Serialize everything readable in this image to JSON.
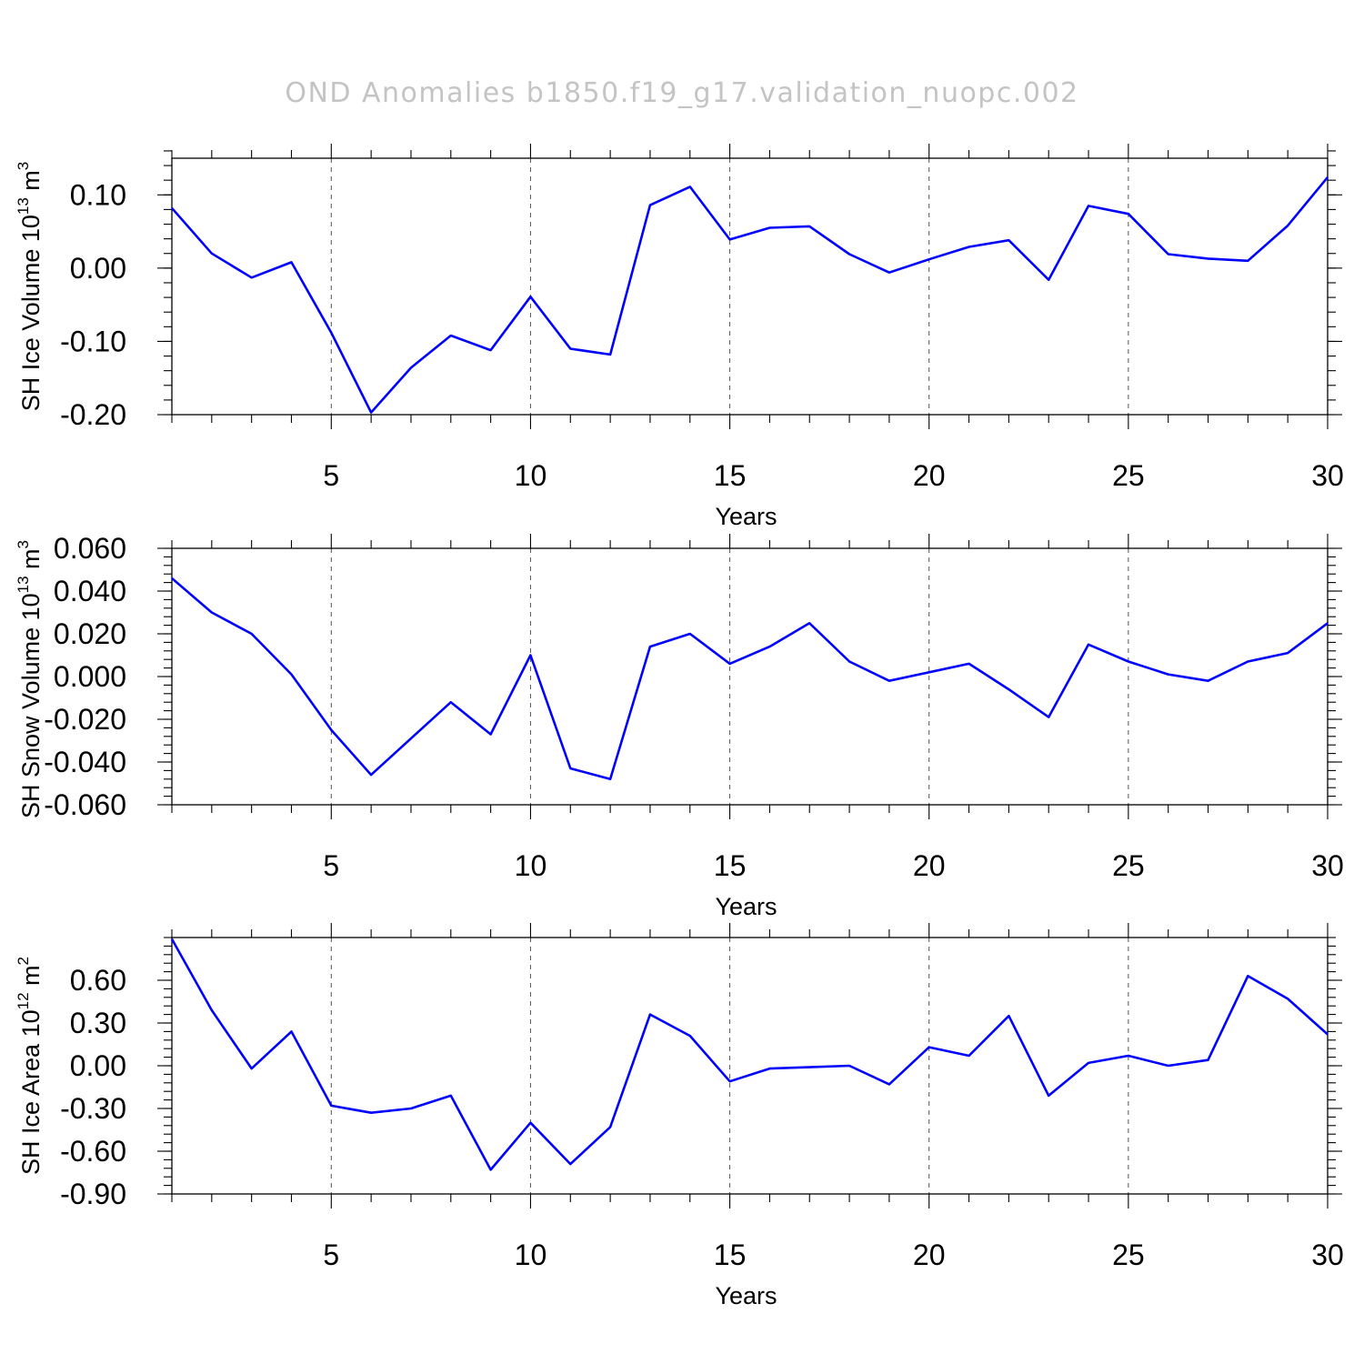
{
  "chart_data": {
    "title": "OND Anomalies b1850.f19_g17.validation_nuopc.002",
    "line_color": "#0000ff",
    "panels": [
      {
        "type": "line",
        "ylabel": {
          "main": "SH Ice Volume 10",
          "exponent": "13",
          "unit": " m",
          "unit_exponent": "3"
        },
        "xlabel": "Years",
        "xlim": [
          1,
          30
        ],
        "xticks": [
          5,
          10,
          15,
          20,
          25,
          30
        ],
        "ylim": [
          -0.2,
          0.15
        ],
        "yticks": [
          -0.2,
          -0.1,
          0.0,
          0.1
        ],
        "ytick_labels": [
          "-0.20",
          "-0.10",
          "0.00",
          "0.10"
        ],
        "yminor_step": 0.02,
        "x": [
          1,
          2,
          3,
          4,
          5,
          6,
          7,
          8,
          9,
          10,
          11,
          12,
          13,
          14,
          15,
          16,
          17,
          18,
          19,
          20,
          21,
          22,
          23,
          24,
          25,
          26,
          27,
          28,
          29,
          30
        ],
        "values": [
          0.082,
          0.02,
          -0.013,
          0.008,
          -0.088,
          -0.197,
          -0.136,
          -0.092,
          -0.112,
          -0.039,
          -0.11,
          -0.118,
          0.086,
          0.111,
          0.039,
          0.055,
          0.057,
          0.019,
          -0.006,
          0.012,
          0.029,
          0.038,
          -0.016,
          0.085,
          0.074,
          0.019,
          0.013,
          0.01,
          0.058,
          0.124
        ]
      },
      {
        "type": "line",
        "ylabel": {
          "main": "SH Snow Volume 10",
          "exponent": "13",
          "unit": " m",
          "unit_exponent": "3"
        },
        "xlabel": "Years",
        "xlim": [
          1,
          30
        ],
        "xticks": [
          5,
          10,
          15,
          20,
          25,
          30
        ],
        "ylim": [
          -0.06,
          0.06
        ],
        "yticks": [
          -0.06,
          -0.04,
          -0.02,
          0.0,
          0.02,
          0.04,
          0.06
        ],
        "ytick_labels": [
          "-0.060",
          "-0.040",
          "-0.020",
          "0.000",
          "0.020",
          "0.040",
          "0.060"
        ],
        "yminor_step": 0.004,
        "x": [
          1,
          2,
          3,
          4,
          5,
          6,
          7,
          8,
          9,
          10,
          11,
          12,
          13,
          14,
          15,
          16,
          17,
          18,
          19,
          20,
          21,
          22,
          23,
          24,
          25,
          26,
          27,
          28,
          29,
          30
        ],
        "values": [
          0.046,
          0.03,
          0.02,
          0.001,
          -0.025,
          -0.046,
          -0.029,
          -0.012,
          -0.027,
          0.01,
          -0.043,
          -0.048,
          0.014,
          0.02,
          0.006,
          0.014,
          0.025,
          0.007,
          -0.002,
          0.002,
          0.006,
          -0.006,
          -0.019,
          0.015,
          0.007,
          0.001,
          -0.002,
          0.007,
          0.011,
          0.025
        ]
      },
      {
        "type": "line",
        "ylabel": {
          "main": "SH Ice Area 10",
          "exponent": "12",
          "unit": " m",
          "unit_exponent": "2"
        },
        "xlabel": "Years",
        "xlim": [
          1,
          30
        ],
        "xticks": [
          5,
          10,
          15,
          20,
          25,
          30
        ],
        "ylim": [
          -0.9,
          0.9
        ],
        "yticks": [
          -0.9,
          -0.6,
          -0.3,
          0.0,
          0.3,
          0.6
        ],
        "ytick_labels": [
          "-0.90",
          "-0.60",
          "-0.30",
          "0.00",
          "0.30",
          "0.60"
        ],
        "yminor_step": 0.06,
        "x": [
          1,
          2,
          3,
          4,
          5,
          6,
          7,
          8,
          9,
          10,
          11,
          12,
          13,
          14,
          15,
          16,
          17,
          18,
          19,
          20,
          21,
          22,
          23,
          24,
          25,
          26,
          27,
          28,
          29,
          30
        ],
        "values": [
          0.89,
          0.39,
          -0.02,
          0.24,
          -0.28,
          -0.33,
          -0.3,
          -0.21,
          -0.73,
          -0.4,
          -0.69,
          -0.43,
          0.36,
          0.21,
          -0.11,
          -0.02,
          -0.01,
          0.0,
          -0.13,
          0.13,
          0.07,
          0.35,
          -0.21,
          0.02,
          0.07,
          0.0,
          0.04,
          0.63,
          0.47,
          0.22
        ]
      }
    ]
  }
}
